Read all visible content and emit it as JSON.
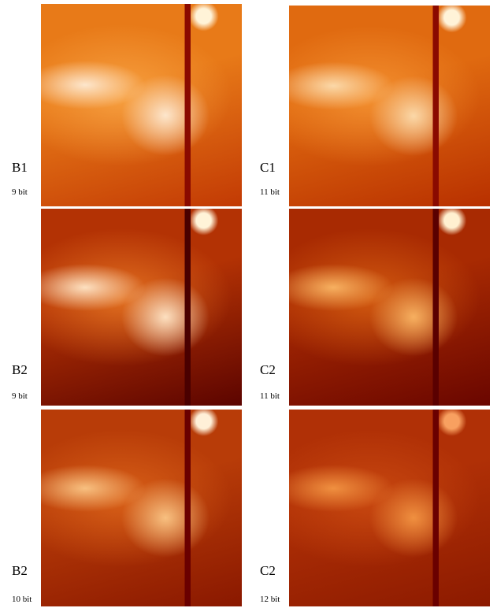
{
  "panels": [
    {
      "label": "B1",
      "bits": "9 bit"
    },
    {
      "label": "C1",
      "bits": "11 bit"
    },
    {
      "label": "B2",
      "bits": "9 bit"
    },
    {
      "label": "C2",
      "bits": "11 bit"
    },
    {
      "label": "B2",
      "bits": "10 bit"
    },
    {
      "label": "C2",
      "bits": "12 bit"
    }
  ]
}
